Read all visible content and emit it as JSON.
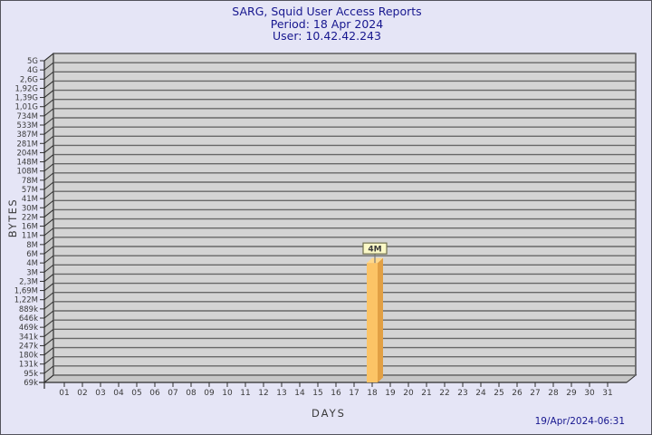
{
  "header": {
    "title": "SARG, Squid User Access Reports",
    "period": "Period: 18 Apr 2024",
    "user": "User: 10.42.42.243"
  },
  "footer": {
    "generated": "19/Apr/2024-06:31"
  },
  "chart_data": {
    "type": "bar",
    "title": "SARG, Squid User Access Reports",
    "subtitles": [
      "Period: 18 Apr 2024",
      "User: 10.42.42.243"
    ],
    "xlabel": "DAYS",
    "ylabel": "BYTES",
    "x_tick_labels": [
      "01",
      "02",
      "03",
      "04",
      "05",
      "06",
      "07",
      "08",
      "09",
      "10",
      "11",
      "12",
      "13",
      "14",
      "15",
      "16",
      "17",
      "18",
      "19",
      "20",
      "21",
      "22",
      "23",
      "24",
      "25",
      "26",
      "27",
      "28",
      "29",
      "30",
      "31"
    ],
    "y_tick_labels_top_to_bottom": [
      "5G",
      "4G",
      "2,6G",
      "1,92G",
      "1,39G",
      "1,01G",
      "734M",
      "533M",
      "387M",
      "281M",
      "204M",
      "148M",
      "108M",
      "78M",
      "57M",
      "41M",
      "30M",
      "22M",
      "16M",
      "11M",
      "8M",
      "6M",
      "4M",
      "3M",
      "2,3M",
      "1,69M",
      "1,22M",
      "889k",
      "646k",
      "469k",
      "341k",
      "247k",
      "180k",
      "131k",
      "95k",
      "69k"
    ],
    "grid": true,
    "bars": [
      {
        "x": "18",
        "value_label": "4M",
        "value_bytes_approx": 4000000
      }
    ],
    "bars_on_other_days": 0
  },
  "colors": {
    "background": "#e5e5f6",
    "border": "#53535c",
    "title_text": "#17178f",
    "panel": "#d4d4d4",
    "wall": "#c6c6c6",
    "grid": "#686868",
    "line": "#2e2e2e",
    "tick_text": "#3a3a3a",
    "bar_front": "#fcc466",
    "bar_side": "#e2a044",
    "bar_top": "#ffd98c",
    "value_box_bg": "#fbf9c7",
    "value_box_border": "#72724e",
    "value_text": "#1a1a1a",
    "timestamp_text": "#17178f"
  }
}
